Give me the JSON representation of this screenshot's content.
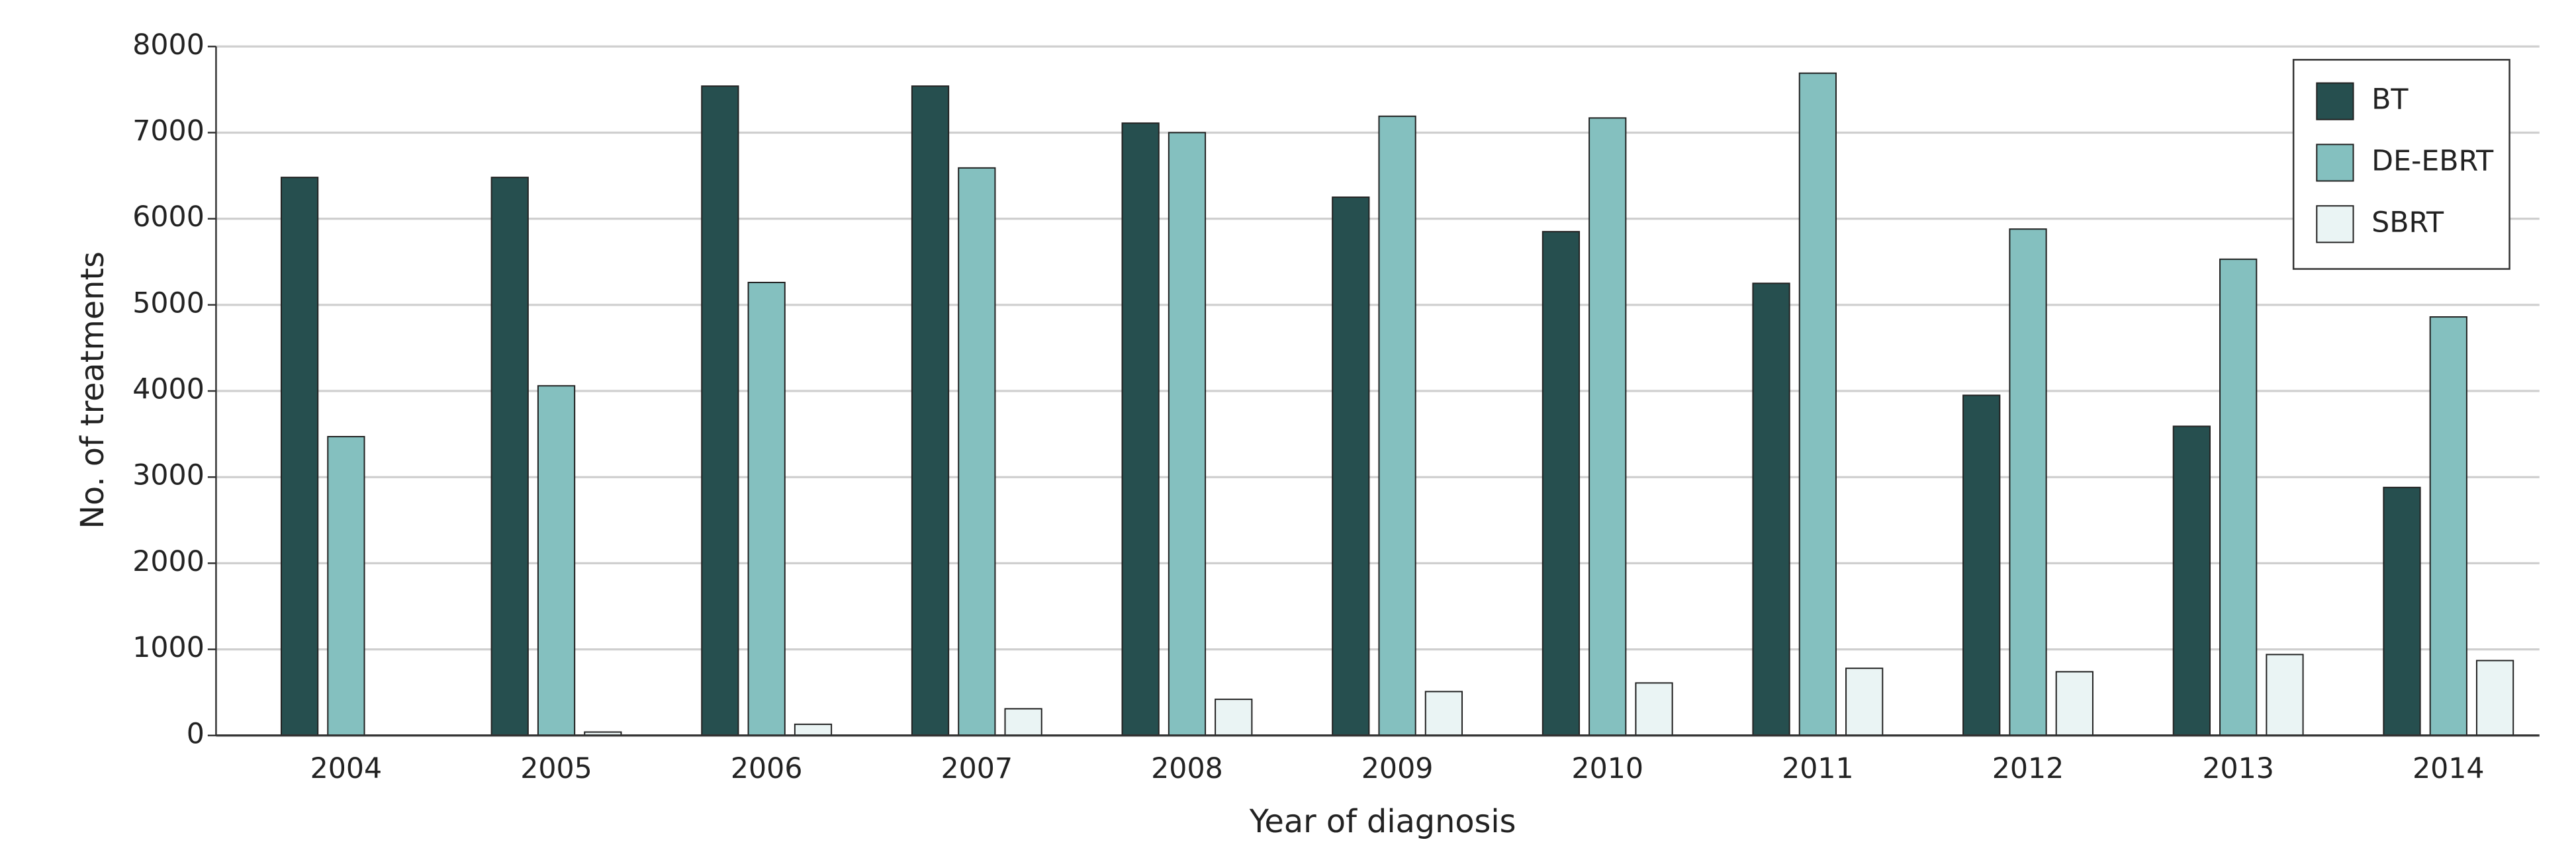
{
  "chart_data": {
    "type": "bar",
    "x_label": "Year of diagnosis",
    "y_label": "No. of treatments",
    "categories": [
      "2004",
      "2005",
      "2006",
      "2007",
      "2008",
      "2009",
      "2010",
      "2011",
      "2012",
      "2013",
      "2014"
    ],
    "series": [
      {
        "name": "BT",
        "color": "#264f4f",
        "values": [
          6480,
          6480,
          7540,
          7540,
          7110,
          6250,
          5850,
          5250,
          3950,
          3590,
          2880
        ]
      },
      {
        "name": "DE-EBRT",
        "color": "#84c0bf",
        "values": [
          3470,
          4060,
          5260,
          6590,
          7000,
          7190,
          7170,
          7690,
          5880,
          5530,
          4860
        ]
      },
      {
        "name": "SBRT",
        "color": "#eaf4f4",
        "values": [
          0,
          40,
          130,
          310,
          420,
          510,
          610,
          780,
          740,
          940,
          870
        ]
      }
    ],
    "ylim": [
      0,
      8000
    ],
    "yticks": [
      0,
      1000,
      2000,
      3000,
      4000,
      5000,
      6000,
      7000,
      8000
    ],
    "grid": true,
    "legend": "upper right"
  }
}
